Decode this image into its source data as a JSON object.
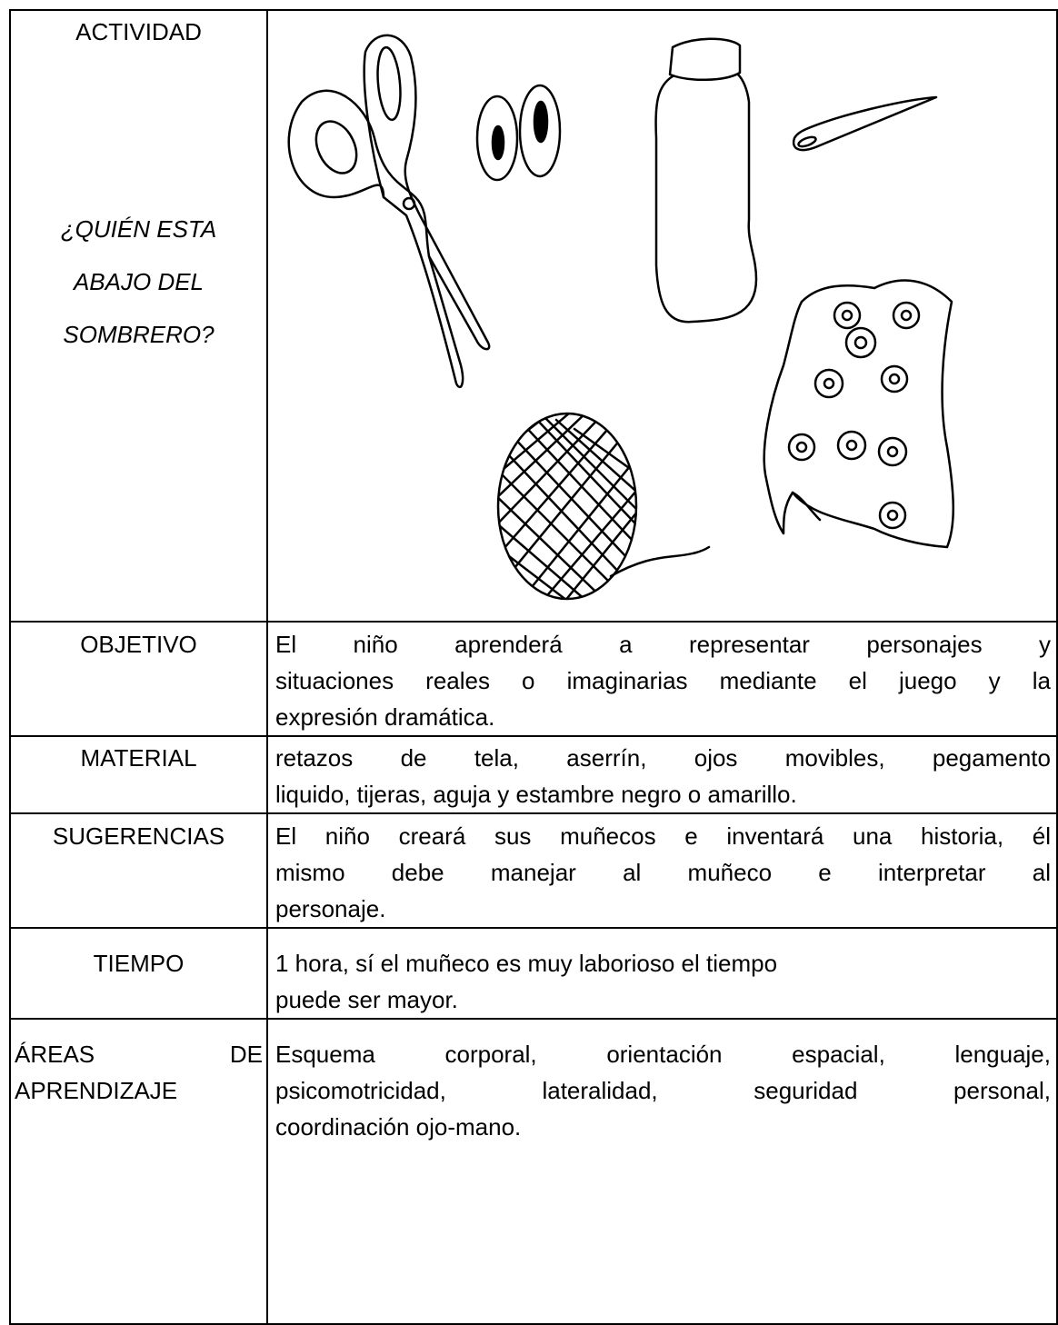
{
  "table": {
    "rows": [
      {
        "label": [
          "ACTIVIDAD"
        ],
        "subtitle": [
          "¿QUIÉN ESTA",
          "ABAJO DEL",
          "SOMBRERO?"
        ]
      },
      {
        "label": [
          "OBJETIVO"
        ],
        "content": [
          "El niño aprenderá a representar personajes y",
          "situaciones reales o imaginarias mediante el juego y la",
          "expresión dramática."
        ]
      },
      {
        "label": [
          "MATERIAL"
        ],
        "content": [
          "retazos de tela, aserrín, ojos movibles, pegamento",
          "liquido, tijeras, aguja y estambre negro o amarillo."
        ]
      },
      {
        "label": [
          "SUGERENCIAS"
        ],
        "content": [
          "El niño creará sus muñecos e inventará una historia, él",
          "mismo debe manejar al muñeco  e interpretar al",
          "personaje."
        ]
      },
      {
        "label": [
          "TIEMPO"
        ],
        "content": [
          "1 hora,  sí el muñeco es muy laborioso el tiempo",
          "puede ser mayor."
        ]
      },
      {
        "label": [
          "ÁREAS DE",
          "APRENDIZAJE"
        ],
        "content": [
          "Esquema corporal, orientación espacial, lenguaje,",
          "psicomotricidad, lateralidad, seguridad personal,",
          "coordinación ojo-mano."
        ]
      }
    ]
  }
}
